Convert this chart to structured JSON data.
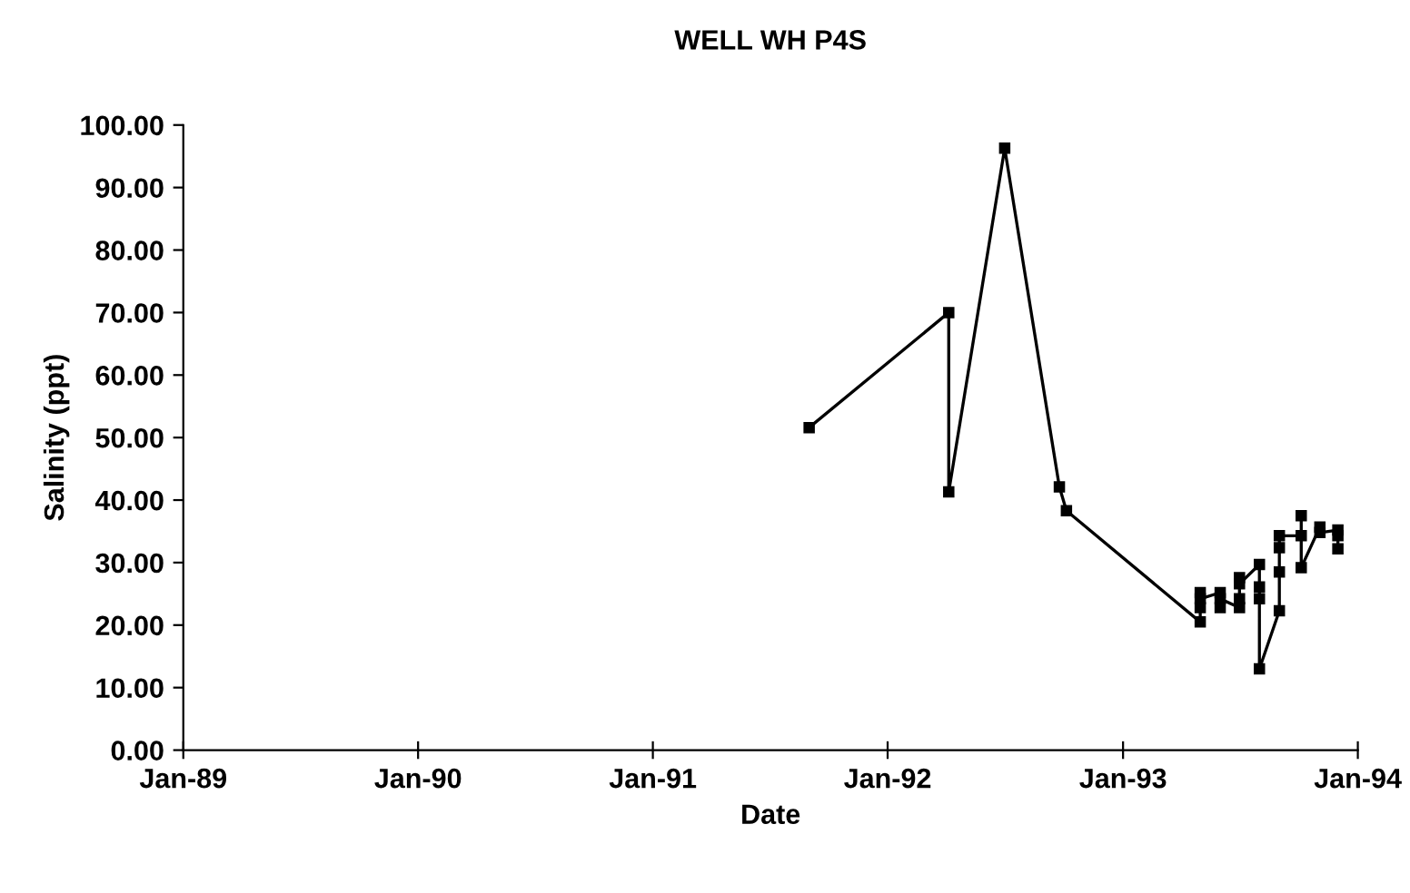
{
  "chart_data": {
    "type": "line",
    "title": "WELL WH P4S",
    "xlabel": "Date",
    "ylabel": "Salinity (ppt)",
    "x": [
      "1991-09-01",
      "1992-04-05",
      "1992-04-05",
      "1992-07-01",
      "1992-09-24",
      "1992-10-05",
      "1993-05-01",
      "1993-05-01",
      "1993-05-01",
      "1993-05-01",
      "1993-06-01",
      "1993-06-01",
      "1993-06-01",
      "1993-07-01",
      "1993-07-01",
      "1993-07-01",
      "1993-07-01",
      "1993-08-01",
      "1993-08-01",
      "1993-08-01",
      "1993-08-01",
      "1993-09-01",
      "1993-09-01",
      "1993-09-01",
      "1993-09-01",
      "1993-10-05",
      "1993-10-05",
      "1993-10-05",
      "1993-11-03",
      "1993-11-03",
      "1993-12-01",
      "1993-12-01",
      "1993-12-01"
    ],
    "series": [
      {
        "color": "#000000",
        "values": [
          51.6,
          70.0,
          41.3,
          96.3,
          42.1,
          38.3,
          20.5,
          22.8,
          25.2,
          24.2,
          25.2,
          22.8,
          24.2,
          22.8,
          24.2,
          27.6,
          26.6,
          29.7,
          26.1,
          24.2,
          13.0,
          22.3,
          28.5,
          32.4,
          34.3,
          34.3,
          37.5,
          29.2,
          35.7,
          34.8,
          35.2,
          34.3,
          32.2
        ]
      }
    ],
    "xlim": [
      "1989-01-01",
      "1994-01-01"
    ],
    "xticks": [
      {
        "value": "1989-01-01",
        "label": "Jan-89"
      },
      {
        "value": "1990-01-01",
        "label": "Jan-90"
      },
      {
        "value": "1991-01-01",
        "label": "Jan-91"
      },
      {
        "value": "1992-01-01",
        "label": "Jan-92"
      },
      {
        "value": "1993-01-01",
        "label": "Jan-93"
      },
      {
        "value": "1994-01-01",
        "label": "Jan-94"
      }
    ],
    "ylim": [
      0,
      100
    ],
    "yticks": [
      {
        "value": 0,
        "label": "0.00"
      },
      {
        "value": 10,
        "label": "10.00"
      },
      {
        "value": 20,
        "label": "20.00"
      },
      {
        "value": 30,
        "label": "30.00"
      },
      {
        "value": 40,
        "label": "40.00"
      },
      {
        "value": 50,
        "label": "50.00"
      },
      {
        "value": 60,
        "label": "60.00"
      },
      {
        "value": 70,
        "label": "70.00"
      },
      {
        "value": 80,
        "label": "80.00"
      },
      {
        "value": 90,
        "label": "90.00"
      },
      {
        "value": 100,
        "label": "100.00"
      }
    ],
    "marker": "square",
    "line_style": "solid",
    "grid": false,
    "legend": false
  }
}
